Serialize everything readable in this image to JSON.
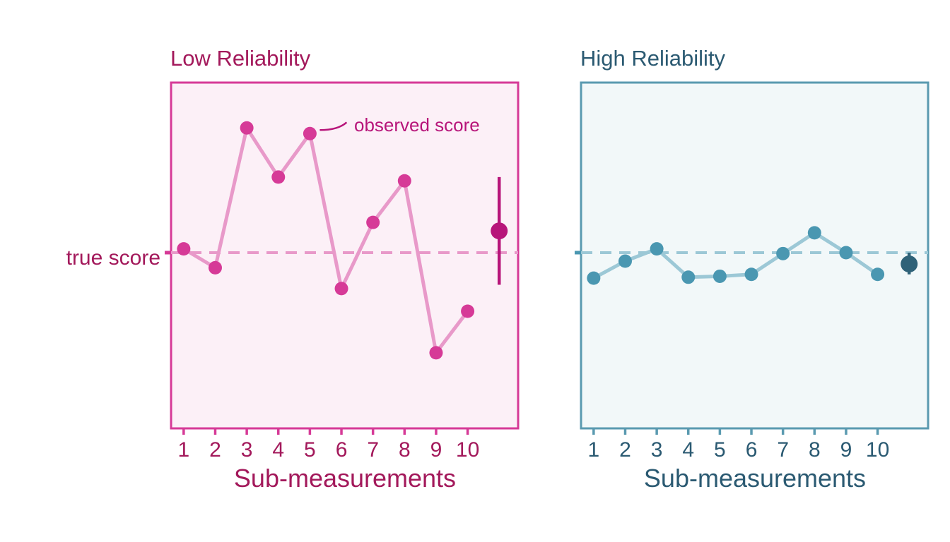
{
  "colors": {
    "low_accent": "#A3195B",
    "low_points": "#D63A97",
    "low_line": "#E899C9",
    "low_frame": "#D63A97",
    "low_bg": "#FCF0F7",
    "low_mean": "#B7157A",
    "high_accent": "#2B5A72",
    "high_points": "#4A97B1",
    "high_line": "#9CC8D6",
    "high_frame": "#5A9AB0",
    "high_bg": "#F2F8F9",
    "high_mean": "#2F6278"
  },
  "true_score_label": "true score",
  "chart_data": [
    {
      "type": "line",
      "title": "Low Reliability",
      "xlabel": "Sub-measurements",
      "ylabel": "",
      "x": [
        1,
        2,
        3,
        4,
        5,
        6,
        7,
        8,
        9,
        10
      ],
      "x_tick_labels": [
        "1",
        "2",
        "3",
        "4",
        "5",
        "6",
        "7",
        "8",
        "9",
        "10"
      ],
      "values": [
        0.2,
        -0.8,
        6.6,
        4.0,
        6.3,
        -1.9,
        1.6,
        3.8,
        -5.3,
        -3.1
      ],
      "true_score": 0,
      "ylim": [
        -9.3,
        9.0
      ],
      "xlim": [
        0.6,
        11.6
      ],
      "mean": {
        "x": 11,
        "value": 1.15,
        "low": -1.7,
        "high": 4.0
      },
      "annotation": {
        "text": "observed score",
        "point_index": 4
      },
      "grid": false
    },
    {
      "type": "line",
      "title": "High Reliability",
      "xlabel": "Sub-measurements",
      "ylabel": "",
      "x": [
        1,
        2,
        3,
        4,
        5,
        6,
        7,
        8,
        9,
        10
      ],
      "x_tick_labels": [
        "1",
        "2",
        "3",
        "4",
        "5",
        "6",
        "7",
        "8",
        "9",
        "10"
      ],
      "values": [
        -1.35,
        -0.45,
        0.2,
        -1.3,
        -1.25,
        -1.15,
        -0.05,
        1.05,
        0.0,
        -1.15
      ],
      "true_score": 0,
      "ylim": [
        -9.3,
        9.0
      ],
      "xlim": [
        0.6,
        11.6
      ],
      "mean": {
        "x": 11,
        "value": -0.6,
        "low": -1.15,
        "high": 0.0
      },
      "grid": false
    }
  ]
}
